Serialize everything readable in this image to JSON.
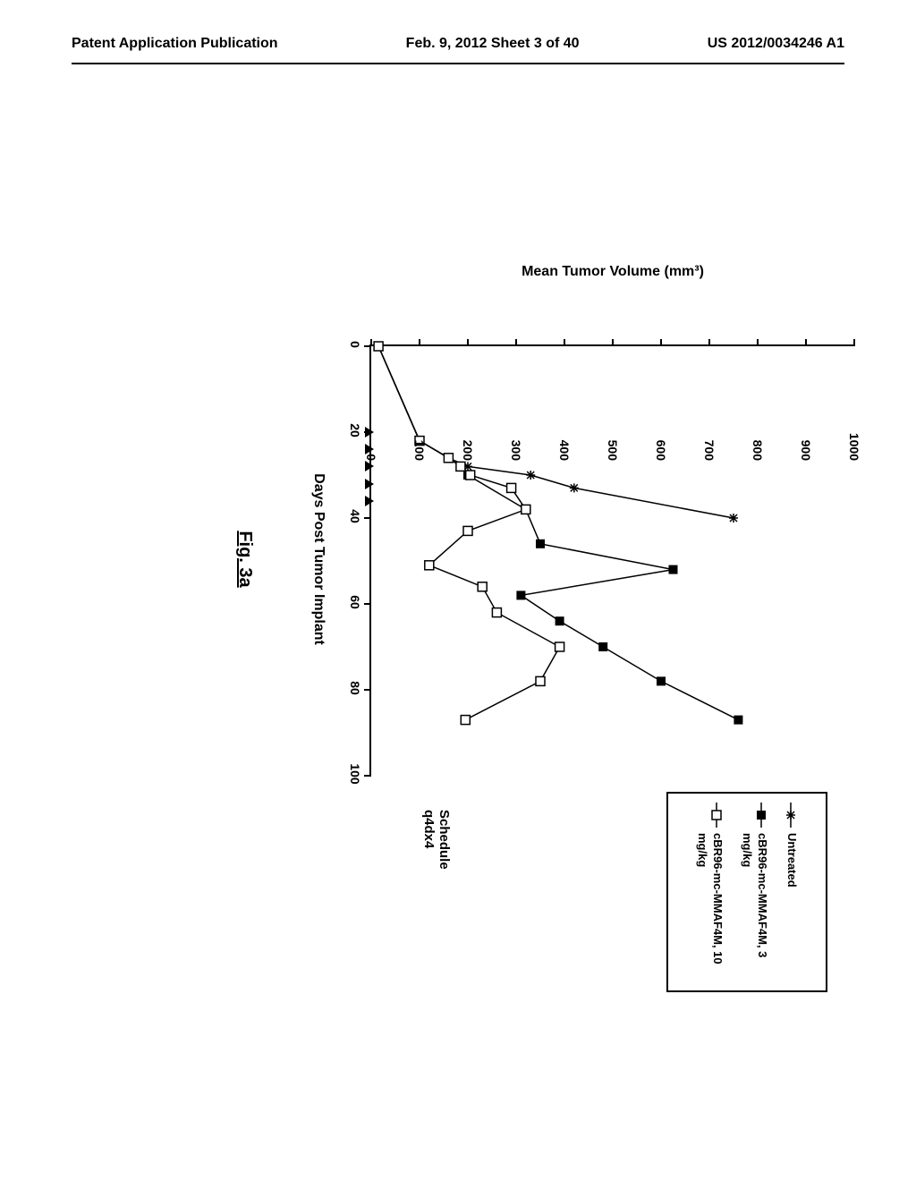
{
  "header": {
    "left": "Patent Application Publication",
    "center": "Feb. 9, 2012  Sheet 3 of 40",
    "right": "US 2012/0034246 A1"
  },
  "chart": {
    "type": "line",
    "title": "",
    "xlabel": "Days Post Tumor Implant",
    "ylabel": "Mean Tumor Volume (mm³)",
    "figure_label": "Fig. 3a",
    "schedule_text": "Schedule q4dx4",
    "xlim": [
      0,
      100
    ],
    "ylim": [
      0,
      1000
    ],
    "xtick_step": 20,
    "ytick_step": 100,
    "xticks": [
      0,
      20,
      40,
      60,
      80,
      100
    ],
    "yticks": [
      0,
      100,
      200,
      300,
      400,
      500,
      600,
      700,
      800,
      900,
      1000
    ],
    "background_color": "#ffffff",
    "axis_color": "#000000",
    "series": [
      {
        "name": "Untreated",
        "marker": "asterisk",
        "color": "#000000",
        "line_width": 1.5,
        "data": [
          {
            "x": 0,
            "y": 15
          },
          {
            "x": 22,
            "y": 100
          },
          {
            "x": 26,
            "y": 160
          },
          {
            "x": 28,
            "y": 200
          },
          {
            "x": 30,
            "y": 330
          },
          {
            "x": 33,
            "y": 420
          },
          {
            "x": 40,
            "y": 750
          }
        ]
      },
      {
        "name": "cBR96-mc-MMAF4M, 3 mg/kg",
        "marker": "filled-square",
        "color": "#000000",
        "line_width": 1.5,
        "data": [
          {
            "x": 0,
            "y": 15
          },
          {
            "x": 22,
            "y": 100
          },
          {
            "x": 26,
            "y": 160
          },
          {
            "x": 28,
            "y": 185
          },
          {
            "x": 30,
            "y": 200
          },
          {
            "x": 38,
            "y": 320
          },
          {
            "x": 46,
            "y": 350
          },
          {
            "x": 52,
            "y": 625
          },
          {
            "x": 58,
            "y": 310
          },
          {
            "x": 64,
            "y": 390
          },
          {
            "x": 70,
            "y": 480
          },
          {
            "x": 78,
            "y": 600
          },
          {
            "x": 87,
            "y": 760
          }
        ]
      },
      {
        "name": "cBR96-mc-MMAF4M, 10 mg/kg",
        "marker": "open-square",
        "color": "#000000",
        "line_width": 1.5,
        "data": [
          {
            "x": 0,
            "y": 15
          },
          {
            "x": 22,
            "y": 100
          },
          {
            "x": 26,
            "y": 160
          },
          {
            "x": 28,
            "y": 185
          },
          {
            "x": 30,
            "y": 205
          },
          {
            "x": 33,
            "y": 290
          },
          {
            "x": 38,
            "y": 320
          },
          {
            "x": 43,
            "y": 200
          },
          {
            "x": 51,
            "y": 120
          },
          {
            "x": 56,
            "y": 230
          },
          {
            "x": 62,
            "y": 260
          },
          {
            "x": 70,
            "y": 390
          },
          {
            "x": 78,
            "y": 350
          },
          {
            "x": 87,
            "y": 195
          }
        ]
      }
    ],
    "dose_markers": {
      "x_positions": [
        20,
        24,
        28,
        32,
        36
      ],
      "marker": "triangle",
      "color": "#000000"
    },
    "label_fontsize": 14,
    "title_fontsize": 16,
    "legend_fontsize": 13
  }
}
